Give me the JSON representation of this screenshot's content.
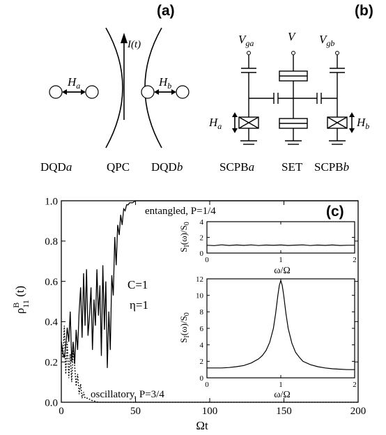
{
  "panels": {
    "a": "(a)",
    "b": "(b)",
    "c": "(c)"
  },
  "schematic_a": {
    "current_label": "I(t)",
    "ha_label": "H",
    "ha_sub": "a",
    "hb_label": "H",
    "hb_sub": "b",
    "dqd_a": "DQD",
    "dqd_a_suffix": "a",
    "qpc": "QPC",
    "dqd_b": "DQD",
    "dqd_b_suffix": "b"
  },
  "schematic_b": {
    "vga": "V",
    "vga_sub": "ga",
    "v": "V",
    "vgb": "V",
    "vgb_sub": "gb",
    "ha": "H",
    "ha_sub": "a",
    "hb": "H",
    "hb_sub": "b",
    "scpb_a": "SCPB",
    "scpb_a_suffix": "a",
    "set": "SET",
    "scpb_b": "SCPB",
    "scpb_b_suffix": "b"
  },
  "chart_data": [
    {
      "type": "line",
      "title": "",
      "xlabel": "Ωt",
      "ylabel": "ρ^B_11 (t)",
      "xlim": [
        0,
        200
      ],
      "ylim": [
        0.0,
        1.0
      ],
      "xticks": [
        "0",
        "50",
        "100",
        "150",
        "200"
      ],
      "yticks": [
        "0.0",
        "0.2",
        "0.4",
        "0.6",
        "0.8",
        "1.0"
      ],
      "annotations": [
        "C=1",
        "η=1"
      ],
      "series": [
        {
          "name": "entangled, P=1/4",
          "style": "solid",
          "x": [
            0,
            1,
            2,
            3,
            4,
            5,
            6,
            7,
            8,
            9,
            10,
            11,
            12,
            13,
            14,
            15,
            16,
            17,
            18,
            19,
            20,
            21,
            22,
            23,
            24,
            25,
            26,
            27,
            28,
            29,
            30,
            31,
            32,
            33,
            34,
            35,
            36,
            37,
            38,
            39,
            40,
            41,
            42,
            43,
            44,
            45,
            46,
            48,
            50,
            55,
            60,
            70,
            80,
            100,
            150,
            200
          ],
          "y": [
            0.3,
            0.25,
            0.22,
            0.28,
            0.37,
            0.3,
            0.45,
            0.2,
            0.3,
            0.19,
            0.36,
            0.26,
            0.45,
            0.57,
            0.32,
            0.64,
            0.38,
            0.66,
            0.33,
            0.43,
            0.57,
            0.26,
            0.51,
            0.38,
            0.66,
            0.43,
            0.58,
            0.23,
            0.68,
            0.36,
            0.6,
            0.17,
            0.45,
            0.26,
            0.63,
            0.53,
            0.82,
            0.68,
            0.88,
            0.83,
            0.93,
            0.88,
            0.96,
            0.95,
            0.98,
            0.98,
            0.99,
            0.99,
            1.0,
            1.0,
            1.0,
            1.0,
            1.0,
            1.0,
            1.0,
            1.0
          ]
        },
        {
          "name": "oscillatory, P=3/4",
          "style": "dotted",
          "x": [
            0,
            1,
            2,
            3,
            4,
            5,
            6,
            7,
            8,
            9,
            10,
            11,
            12,
            13,
            14,
            15,
            16,
            18,
            20,
            25,
            30,
            40,
            60,
            100,
            150,
            200
          ],
          "y": [
            0.3,
            0.22,
            0.38,
            0.14,
            0.3,
            0.12,
            0.24,
            0.1,
            0.26,
            0.18,
            0.08,
            0.14,
            0.04,
            0.09,
            0.02,
            0.05,
            0.02,
            0.02,
            0.01,
            0.0,
            0.0,
            0.0,
            0.0,
            0.0,
            0.0,
            0.0
          ]
        }
      ]
    },
    {
      "type": "line",
      "title": "",
      "xlabel": "ω/Ω",
      "ylabel": "S_I(ω)/S_0",
      "xlim": [
        0,
        2
      ],
      "ylim": [
        0,
        4
      ],
      "xticks": [
        "0",
        "1",
        "2"
      ],
      "yticks": [
        "0",
        "2",
        "4"
      ],
      "series": [
        {
          "name": "",
          "x": [
            0,
            0.1,
            0.2,
            0.3,
            0.4,
            0.5,
            0.6,
            0.7,
            0.8,
            0.9,
            1.0,
            1.1,
            1.2,
            1.3,
            1.4,
            1.5,
            1.6,
            1.7,
            1.8,
            1.9,
            2.0
          ],
          "y": [
            1.0,
            0.95,
            1.05,
            0.97,
            1.03,
            0.98,
            1.04,
            0.96,
            1.02,
            0.99,
            1.03,
            0.97,
            1.01,
            1.04,
            0.96,
            1.02,
            0.98,
            1.03,
            0.97,
            1.0,
            1.0
          ]
        }
      ]
    },
    {
      "type": "line",
      "title": "",
      "xlabel": "ω/Ω",
      "ylabel": "S_I(ω)/S_0",
      "xlim": [
        0,
        2
      ],
      "ylim": [
        0,
        12
      ],
      "xticks": [
        "0",
        "1",
        "2"
      ],
      "yticks": [
        "0",
        "2",
        "4",
        "6",
        "8",
        "10",
        "12"
      ],
      "series": [
        {
          "name": "",
          "x": [
            0,
            0.1,
            0.2,
            0.3,
            0.4,
            0.5,
            0.6,
            0.7,
            0.75,
            0.8,
            0.85,
            0.9,
            0.93,
            0.96,
            0.98,
            1.0,
            1.02,
            1.04,
            1.07,
            1.1,
            1.15,
            1.2,
            1.25,
            1.3,
            1.4,
            1.5,
            1.6,
            1.7,
            1.8,
            1.9,
            2.0
          ],
          "y": [
            1.2,
            1.2,
            1.2,
            1.25,
            1.35,
            1.5,
            1.8,
            2.3,
            2.7,
            3.3,
            4.3,
            6.0,
            7.8,
            10.0,
            11.2,
            11.8,
            11.2,
            10.0,
            7.8,
            6.0,
            4.2,
            3.1,
            2.5,
            2.0,
            1.6,
            1.35,
            1.2,
            1.1,
            1.05,
            1.0,
            1.0
          ]
        }
      ]
    }
  ]
}
